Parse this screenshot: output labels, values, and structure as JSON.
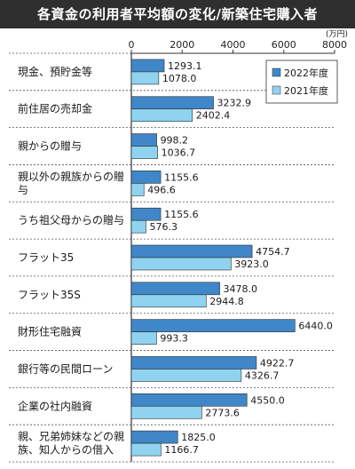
{
  "title": "各資金の利用者平均額の変化/新築住宅購入者",
  "colors": {
    "title_bg": "#2f2f2f",
    "series_2022": "#3f87c8",
    "series_2021": "#8fd3f0"
  },
  "chart_data": {
    "type": "bar",
    "orientation": "horizontal",
    "title": "各資金の利用者平均額の変化/新築住宅購入者",
    "unit_label": "(万円)",
    "xlim": [
      0,
      8000
    ],
    "ticks": [
      "0",
      "2000",
      "4000",
      "6000",
      "8000"
    ],
    "tick_values": [
      0,
      2000,
      4000,
      6000,
      8000
    ],
    "grid": false,
    "legend_placement": "top-right",
    "categories": [
      [
        "現金、預貯金等"
      ],
      [
        "前住居の売却金"
      ],
      [
        "親からの贈与"
      ],
      [
        "親以外の親族からの贈",
        "与"
      ],
      [
        "うち祖父母からの贈与"
      ],
      [
        "フラット35"
      ],
      [
        "フラット35S"
      ],
      [
        "財形住宅融資"
      ],
      [
        "銀行等の民間ローン"
      ],
      [
        "企業の社内融資"
      ],
      [
        "親、兄弟姉妹などの親",
        "族、知人からの借入"
      ]
    ],
    "series": [
      {
        "name": "2022年度",
        "values": [
          1293.1,
          3232.9,
          998.2,
          1155.6,
          1155.6,
          4754.7,
          3478.0,
          6440.0,
          4922.7,
          4550.0,
          1825.0
        ],
        "labels": [
          "1293.1",
          "3232.9",
          "998.2",
          "1155.6",
          "1155.6",
          "4754.7",
          "3478.0",
          "6440.0",
          "4922.7",
          "4550.0",
          "1825.0"
        ]
      },
      {
        "name": "2021年度",
        "values": [
          1078.0,
          2402.4,
          1036.7,
          496.6,
          576.3,
          3923.0,
          2944.8,
          993.3,
          4326.7,
          2773.6,
          1166.7
        ],
        "labels": [
          "1078.0",
          "2402.4",
          "1036.7",
          "496.6",
          "576.3",
          "3923.0",
          "2944.8",
          "993.3",
          "4326.7",
          "2773.6",
          "1166.7"
        ]
      }
    ]
  }
}
